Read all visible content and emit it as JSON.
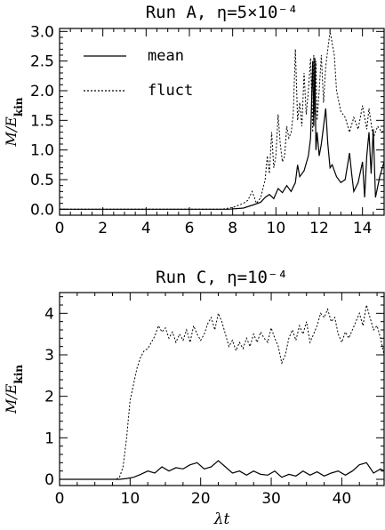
{
  "chart_data": [
    {
      "type": "line",
      "title": "Run A, η=5×10⁻⁴",
      "ylabel": "M/E_kin",
      "xlabel": "",
      "xlim": [
        0,
        15
      ],
      "ylim": [
        -0.1,
        3.05
      ],
      "xticks": [
        0,
        2,
        4,
        6,
        8,
        10,
        12,
        14
      ],
      "yticks": [
        0.0,
        0.5,
        1.0,
        1.5,
        2.0,
        2.5,
        3.0
      ],
      "ytick_labels": [
        "0.0",
        "0.5",
        "1.0",
        "1.5",
        "2.0",
        "2.5",
        "3.0"
      ],
      "legend_position": "top-left",
      "legend": [
        {
          "label": "mean",
          "style": "solid"
        },
        {
          "label": "fluct",
          "style": "dotted"
        }
      ],
      "series": [
        {
          "name": "mean",
          "style": "solid",
          "x": [
            0,
            7.8,
            8.5,
            9.0,
            9.3,
            9.5,
            9.7,
            9.9,
            10.1,
            10.3,
            10.5,
            10.7,
            10.9,
            11.0,
            11.1,
            11.3,
            11.5,
            11.6,
            11.7,
            11.75,
            11.8,
            11.85,
            11.9,
            12.0,
            12.1,
            12.2,
            12.3,
            12.4,
            12.5,
            12.6,
            12.8,
            13.0,
            13.2,
            13.4,
            13.5,
            13.6,
            13.8,
            14.0,
            14.1,
            14.2,
            14.3,
            14.4,
            14.5,
            14.6,
            14.8,
            15.0
          ],
          "y": [
            0.0,
            0.0,
            0.02,
            0.08,
            0.12,
            0.2,
            0.25,
            0.18,
            0.35,
            0.28,
            0.4,
            0.3,
            0.45,
            0.75,
            0.55,
            0.65,
            0.9,
            1.2,
            2.5,
            1.4,
            2.55,
            1.0,
            1.3,
            0.9,
            1.1,
            1.4,
            1.7,
            1.1,
            0.7,
            0.75,
            0.55,
            0.45,
            0.5,
            0.95,
            0.6,
            0.3,
            0.45,
            0.8,
            0.2,
            0.9,
            1.3,
            0.6,
            1.35,
            0.2,
            0.55,
            0.8
          ]
        },
        {
          "name": "fluct",
          "style": "dotted",
          "x": [
            0,
            7.5,
            8.0,
            8.5,
            8.7,
            8.9,
            9.1,
            9.3,
            9.5,
            9.6,
            9.7,
            9.8,
            9.9,
            10.0,
            10.1,
            10.2,
            10.3,
            10.4,
            10.5,
            10.6,
            10.7,
            10.8,
            10.9,
            11.0,
            11.1,
            11.2,
            11.3,
            11.4,
            11.5,
            11.6,
            11.7,
            11.75,
            11.8,
            11.85,
            11.9,
            12.0,
            12.1,
            12.2,
            12.3,
            12.4,
            12.5,
            12.6,
            12.7,
            12.8,
            13.0,
            13.2,
            13.4,
            13.6,
            13.8,
            14.0,
            14.2,
            14.3,
            14.5,
            14.7,
            14.9,
            15.0
          ],
          "y": [
            0.0,
            0.0,
            0.03,
            0.1,
            0.15,
            0.3,
            0.1,
            0.2,
            0.5,
            0.9,
            0.6,
            1.3,
            0.7,
            0.9,
            1.6,
            1.1,
            0.8,
            0.9,
            1.4,
            1.2,
            1.3,
            1.6,
            2.7,
            1.5,
            1.8,
            1.4,
            2.3,
            1.6,
            2.0,
            2.55,
            1.3,
            2.6,
            1.6,
            2.5,
            1.5,
            2.0,
            2.6,
            1.8,
            2.4,
            2.7,
            3.0,
            2.8,
            2.6,
            2.0,
            1.65,
            1.55,
            1.3,
            1.55,
            1.35,
            1.75,
            1.35,
            1.7,
            1.2,
            1.4,
            1.3,
            1.35
          ]
        }
      ]
    },
    {
      "type": "line",
      "title": "Run C, η=10⁻⁴",
      "ylabel": "M/E_kin",
      "xlabel": "λt",
      "xlim": [
        0,
        46
      ],
      "ylim": [
        -0.15,
        4.5
      ],
      "xticks": [
        0,
        10,
        20,
        30,
        40
      ],
      "yticks": [
        0,
        1,
        2,
        3,
        4
      ],
      "ytick_labels": [
        "0",
        "1",
        "2",
        "3",
        "4"
      ],
      "series": [
        {
          "name": "mean",
          "style": "solid",
          "x": [
            0,
            8.5,
            9.5,
            10.5,
            11.5,
            12.5,
            13.5,
            14.5,
            15.5,
            16.5,
            17.5,
            18.5,
            19.5,
            20.5,
            21.5,
            22.5,
            23.5,
            24.5,
            25.5,
            26.5,
            27.5,
            28.5,
            29.5,
            30.5,
            31.5,
            32.5,
            33.5,
            34.5,
            35.5,
            36.5,
            37.5,
            38.5,
            39.5,
            40.5,
            41.5,
            42.5,
            43.5,
            44.5,
            45.5,
            46
          ],
          "y": [
            0.0,
            0.0,
            0.02,
            0.05,
            0.12,
            0.2,
            0.15,
            0.3,
            0.2,
            0.28,
            0.25,
            0.35,
            0.4,
            0.25,
            0.3,
            0.45,
            0.3,
            0.15,
            0.2,
            0.1,
            0.2,
            0.12,
            0.1,
            0.2,
            0.05,
            0.12,
            0.08,
            0.2,
            0.1,
            0.18,
            0.08,
            0.15,
            0.2,
            0.1,
            0.2,
            0.35,
            0.4,
            0.15,
            0.25,
            0.2
          ]
        },
        {
          "name": "fluct",
          "style": "dotted",
          "x": [
            0,
            8.0,
            8.5,
            9.0,
            9.5,
            10.0,
            10.5,
            11.0,
            11.5,
            12.0,
            12.5,
            13.0,
            13.5,
            14.0,
            14.5,
            15.0,
            15.5,
            16.0,
            16.5,
            17.0,
            17.5,
            18.0,
            18.5,
            19.0,
            19.5,
            20.0,
            20.5,
            21.0,
            21.5,
            22.0,
            22.5,
            23.0,
            23.5,
            24.0,
            24.5,
            25.0,
            25.5,
            26.0,
            26.5,
            27.0,
            27.5,
            28.0,
            28.5,
            29.0,
            29.5,
            30.0,
            30.5,
            31.0,
            31.5,
            32.0,
            32.5,
            33.0,
            33.5,
            34.0,
            34.5,
            35.0,
            35.5,
            36.0,
            36.5,
            37.0,
            37.5,
            38.0,
            38.5,
            39.0,
            39.5,
            40.0,
            40.5,
            41.0,
            41.5,
            42.0,
            42.5,
            43.0,
            43.5,
            44.0,
            44.5,
            45.0,
            45.5,
            46.0
          ],
          "y": [
            0.0,
            0.0,
            0.05,
            0.3,
            1.0,
            1.9,
            2.3,
            2.7,
            2.95,
            3.1,
            3.15,
            3.3,
            3.45,
            3.7,
            3.55,
            3.65,
            3.4,
            3.55,
            3.3,
            3.5,
            3.35,
            3.6,
            3.3,
            3.7,
            3.5,
            3.35,
            3.5,
            3.75,
            3.9,
            3.6,
            4.0,
            3.8,
            3.5,
            3.2,
            3.35,
            3.1,
            3.3,
            3.15,
            3.4,
            3.2,
            3.5,
            3.3,
            3.55,
            3.4,
            3.3,
            3.65,
            3.4,
            3.2,
            2.8,
            3.0,
            3.4,
            3.6,
            3.35,
            3.7,
            3.5,
            3.8,
            3.3,
            3.5,
            3.7,
            4.0,
            3.9,
            4.1,
            3.8,
            3.9,
            3.5,
            3.3,
            3.55,
            3.4,
            3.6,
            3.8,
            4.0,
            3.7,
            4.2,
            3.9,
            3.6,
            3.7,
            3.4,
            3.0
          ]
        }
      ]
    }
  ]
}
